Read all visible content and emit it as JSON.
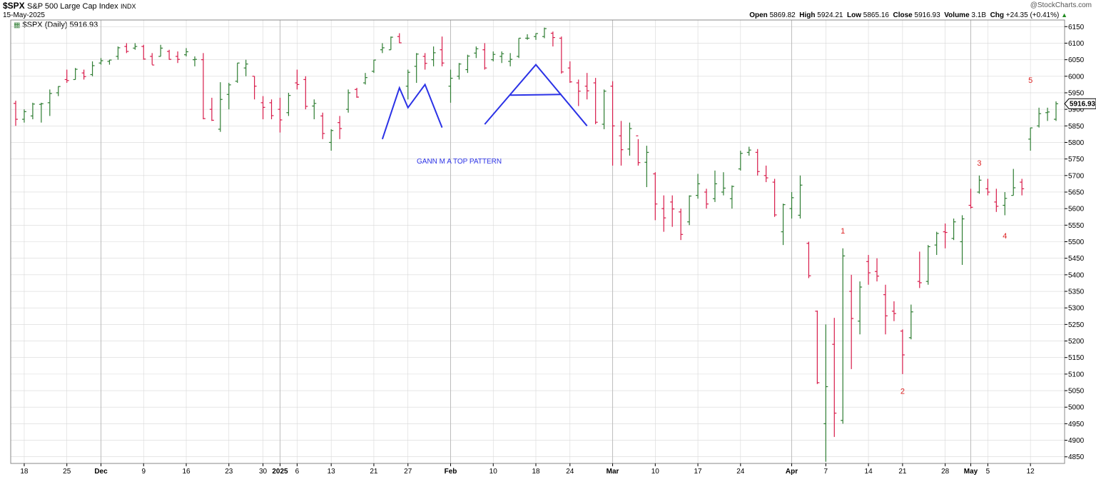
{
  "header": {
    "symbol": "$SPX",
    "name": "S&P 500 Large Cap Index",
    "exchange": "INDX",
    "date": "15-May-2025",
    "credit": "@StockCharts.com",
    "open_label": "Open",
    "open": "5869.82",
    "high_label": "High",
    "high": "5924.21",
    "low_label": "Low",
    "low": "5865.16",
    "close_label": "Close",
    "close": "5916.93",
    "volume_label": "Volume",
    "volume": "3.1B",
    "chg_label": "Chg",
    "chg": "+24.35 (+0.41%)"
  },
  "legend": {
    "icon": "bar-chart-icon",
    "text": "$SPX (Daily) 5916.93"
  },
  "price_tag": "5916.93",
  "colors": {
    "up": "#2e7d32",
    "down": "#d81b4a",
    "annotation": "#2b32e6",
    "wave_label": "#dd2222",
    "grid": "#d8d8d8"
  },
  "annotation_text": "GANN M  A  TOP PATTERN",
  "wave_labels": [
    {
      "text": "1",
      "date": "2025-04-09",
      "price": 5525
    },
    {
      "text": "2",
      "date": "2025-04-21",
      "price": 5040
    },
    {
      "text": "3",
      "date": "2025-05-02",
      "price": 5730
    },
    {
      "text": "4",
      "date": "2025-05-07",
      "price": 5510
    },
    {
      "text": "5",
      "date": "2025-05-12",
      "price": 5980
    }
  ],
  "chart_data": {
    "type": "ohlc",
    "ylim": [
      4830,
      6170
    ],
    "yticks": [
      4850,
      4900,
      4950,
      5000,
      5050,
      5100,
      5150,
      5200,
      5250,
      5300,
      5350,
      5400,
      5450,
      5500,
      5550,
      5600,
      5650,
      5700,
      5750,
      5800,
      5850,
      5900,
      5950,
      6000,
      6050,
      6100,
      6150
    ],
    "xticks": [
      {
        "label": "18",
        "date": "2024-11-18"
      },
      {
        "label": "25",
        "date": "2024-11-25"
      },
      {
        "label": "Dec",
        "date": "2024-12-02",
        "bold": true
      },
      {
        "label": "9",
        "date": "2024-12-09"
      },
      {
        "label": "16",
        "date": "2024-12-16"
      },
      {
        "label": "23",
        "date": "2024-12-23"
      },
      {
        "label": "30",
        "date": "2024-12-30"
      },
      {
        "label": "2025",
        "date": "2025-01-02",
        "bold": true
      },
      {
        "label": "6",
        "date": "2025-01-06"
      },
      {
        "label": "13",
        "date": "2025-01-13"
      },
      {
        "label": "21",
        "date": "2025-01-21"
      },
      {
        "label": "27",
        "date": "2025-01-27"
      },
      {
        "label": "Feb",
        "date": "2025-02-03",
        "bold": true
      },
      {
        "label": "10",
        "date": "2025-02-10"
      },
      {
        "label": "18",
        "date": "2025-02-18"
      },
      {
        "label": "24",
        "date": "2025-02-24"
      },
      {
        "label": "Mar",
        "date": "2025-03-03",
        "bold": true
      },
      {
        "label": "10",
        "date": "2025-03-10"
      },
      {
        "label": "17",
        "date": "2025-03-17"
      },
      {
        "label": "24",
        "date": "2025-03-24"
      },
      {
        "label": "Apr",
        "date": "2025-04-01",
        "bold": true
      },
      {
        "label": "7",
        "date": "2025-04-07"
      },
      {
        "label": "14",
        "date": "2025-04-14"
      },
      {
        "label": "21",
        "date": "2025-04-21"
      },
      {
        "label": "28",
        "date": "2025-04-28"
      },
      {
        "label": "May",
        "date": "2025-05-01",
        "bold": true
      },
      {
        "label": "5",
        "date": "2025-05-05"
      },
      {
        "label": "12",
        "date": "2025-05-12"
      }
    ],
    "m_pattern": [
      [
        "2025-01-22",
        5810
      ],
      [
        "2025-01-24",
        5965
      ],
      [
        "2025-01-27",
        5905
      ],
      [
        "2025-01-29",
        5975
      ],
      [
        "2025-01-31",
        5845
      ]
    ],
    "a_pattern": [
      [
        "2025-02-07",
        5855
      ],
      [
        "2025-02-18",
        6035
      ],
      [
        "2025-02-26",
        5850
      ]
    ],
    "a_crossbar": [
      [
        "2025-02-12",
        5943
      ],
      [
        "2025-02-21",
        5945
      ]
    ],
    "bars": [
      [
        "2024-11-15",
        5918,
        5926,
        5850,
        5870
      ],
      [
        "2024-11-18",
        5870,
        5900,
        5860,
        5893
      ],
      [
        "2024-11-19",
        5880,
        5920,
        5870,
        5916
      ],
      [
        "2024-11-20",
        5915,
        5920,
        5860,
        5917
      ],
      [
        "2024-11-21",
        5920,
        5960,
        5880,
        5948
      ],
      [
        "2024-11-22",
        5950,
        5970,
        5940,
        5969
      ],
      [
        "2024-11-25",
        5990,
        6020,
        5980,
        5987
      ],
      [
        "2024-11-26",
        5990,
        6025,
        5990,
        6021
      ],
      [
        "2024-11-27",
        6010,
        6020,
        5990,
        5999
      ],
      [
        "2024-11-29",
        6005,
        6045,
        6000,
        6032
      ],
      [
        "2024-12-02",
        6040,
        6055,
        6035,
        6047
      ],
      [
        "2024-12-03",
        6045,
        6050,
        6035,
        6049
      ],
      [
        "2024-12-04",
        6060,
        6090,
        6050,
        6086
      ],
      [
        "2024-12-05",
        6090,
        6100,
        6070,
        6075
      ],
      [
        "2024-12-06",
        6085,
        6100,
        6080,
        6090
      ],
      [
        "2024-12-09",
        6090,
        6095,
        6050,
        6052
      ],
      [
        "2024-12-10",
        6060,
        6070,
        6035,
        6034
      ],
      [
        "2024-12-11",
        6060,
        6095,
        6060,
        6085
      ],
      [
        "2024-12-12",
        6075,
        6080,
        6050,
        6051
      ],
      [
        "2024-12-13",
        6060,
        6075,
        6040,
        6051
      ],
      [
        "2024-12-16",
        6065,
        6085,
        6060,
        6074
      ],
      [
        "2024-12-17",
        6050,
        6060,
        6030,
        6051
      ],
      [
        "2024-12-18",
        6050,
        6070,
        5870,
        5872
      ],
      [
        "2024-12-19",
        5900,
        5935,
        5865,
        5867
      ],
      [
        "2024-12-20",
        5840,
        5982,
        5832,
        5930
      ],
      [
        "2024-12-23",
        5945,
        5980,
        5900,
        5974
      ],
      [
        "2024-12-24",
        5985,
        6040,
        5980,
        6040
      ],
      [
        "2024-12-26",
        6025,
        6050,
        6000,
        6037
      ],
      [
        "2024-12-27",
        6000,
        6000,
        5930,
        5970
      ],
      [
        "2024-12-30",
        5920,
        5940,
        5870,
        5906
      ],
      [
        "2024-12-31",
        5920,
        5930,
        5870,
        5881
      ],
      [
        "2025-01-02",
        5900,
        5935,
        5830,
        5868
      ],
      [
        "2025-01-03",
        5890,
        5950,
        5880,
        5942
      ],
      [
        "2025-01-06",
        5980,
        6020,
        5960,
        5975
      ],
      [
        "2025-01-07",
        5990,
        6000,
        5900,
        5909
      ],
      [
        "2025-01-08",
        5910,
        5930,
        5870,
        5918
      ],
      [
        "2025-01-10",
        5880,
        5890,
        5810,
        5827
      ],
      [
        "2025-01-13",
        5800,
        5840,
        5775,
        5836
      ],
      [
        "2025-01-14",
        5860,
        5880,
        5810,
        5842
      ],
      [
        "2025-01-15",
        5900,
        5960,
        5890,
        5950
      ],
      [
        "2025-01-16",
        5960,
        5965,
        5935,
        5937
      ],
      [
        "2025-01-17",
        5980,
        6010,
        5975,
        5996
      ],
      [
        "2025-01-21",
        6015,
        6050,
        6010,
        6049
      ],
      [
        "2025-01-22",
        6080,
        6100,
        6070,
        6086
      ],
      [
        "2025-01-23",
        6080,
        6120,
        6080,
        6118
      ],
      [
        "2025-01-24",
        6120,
        6130,
        6100,
        6101
      ],
      [
        "2025-01-27",
        5970,
        6020,
        5930,
        6012
      ],
      [
        "2025-01-28",
        6030,
        6070,
        5980,
        6067
      ],
      [
        "2025-01-29",
        6060,
        6070,
        6020,
        6039
      ],
      [
        "2025-01-30",
        6050,
        6090,
        6030,
        6071
      ],
      [
        "2025-01-31",
        6080,
        6120,
        6030,
        6040
      ],
      [
        "2025-02-03",
        5970,
        6020,
        5920,
        5994
      ],
      [
        "2025-02-04",
        6000,
        6040,
        5990,
        6037
      ],
      [
        "2025-02-05",
        6020,
        6065,
        6010,
        6061
      ],
      [
        "2025-02-06",
        6070,
        6090,
        6055,
        6083
      ],
      [
        "2025-02-07",
        6080,
        6100,
        6020,
        6025
      ],
      [
        "2025-02-10",
        6050,
        6075,
        6045,
        6066
      ],
      [
        "2025-02-11",
        6060,
        6075,
        6040,
        6068
      ],
      [
        "2025-02-12",
        6045,
        6070,
        6030,
        6051
      ],
      [
        "2025-02-13",
        6060,
        6115,
        6055,
        6115
      ],
      [
        "2025-02-14",
        6115,
        6127,
        6110,
        6115
      ],
      [
        "2025-02-18",
        6120,
        6130,
        6110,
        6129
      ],
      [
        "2025-02-19",
        6120,
        6147,
        6115,
        6144
      ],
      [
        "2025-02-20",
        6130,
        6135,
        6090,
        6117
      ],
      [
        "2025-02-21",
        6115,
        6120,
        6008,
        6013
      ],
      [
        "2025-02-24",
        6025,
        6045,
        5980,
        5983
      ],
      [
        "2025-02-25",
        5980,
        5990,
        5910,
        5955
      ],
      [
        "2025-02-26",
        5970,
        6010,
        5930,
        5956
      ],
      [
        "2025-02-27",
        5980,
        5995,
        5855,
        5861
      ],
      [
        "2025-02-28",
        5855,
        5960,
        5840,
        5955
      ],
      [
        "2025-03-03",
        5970,
        5985,
        5730,
        5850
      ],
      [
        "2025-03-04",
        5820,
        5865,
        5730,
        5778
      ],
      [
        "2025-03-05",
        5780,
        5860,
        5760,
        5842
      ],
      [
        "2025-03-06",
        5820,
        5810,
        5730,
        5739
      ],
      [
        "2025-03-07",
        5740,
        5790,
        5665,
        5770
      ],
      [
        "2025-03-10",
        5705,
        5710,
        5565,
        5614
      ],
      [
        "2025-03-11",
        5600,
        5640,
        5530,
        5572
      ],
      [
        "2025-03-12",
        5620,
        5640,
        5545,
        5599
      ],
      [
        "2025-03-13",
        5590,
        5600,
        5505,
        5522
      ],
      [
        "2025-03-14",
        5560,
        5640,
        5550,
        5638
      ],
      [
        "2025-03-17",
        5640,
        5705,
        5630,
        5675
      ],
      [
        "2025-03-18",
        5650,
        5660,
        5600,
        5614
      ],
      [
        "2025-03-19",
        5630,
        5715,
        5620,
        5675
      ],
      [
        "2025-03-20",
        5650,
        5710,
        5640,
        5662
      ],
      [
        "2025-03-21",
        5630,
        5670,
        5600,
        5667
      ],
      [
        "2025-03-24",
        5720,
        5775,
        5715,
        5767
      ],
      [
        "2025-03-25",
        5770,
        5787,
        5760,
        5777
      ],
      [
        "2025-03-26",
        5770,
        5780,
        5700,
        5712
      ],
      [
        "2025-03-27",
        5700,
        5730,
        5680,
        5693
      ],
      [
        "2025-03-28",
        5680,
        5690,
        5575,
        5581
      ],
      [
        "2025-03-31",
        5530,
        5615,
        5490,
        5612
      ],
      [
        "2025-04-01",
        5600,
        5650,
        5570,
        5633
      ],
      [
        "2025-04-02",
        5580,
        5700,
        5570,
        5671
      ],
      [
        "2025-04-03",
        5495,
        5500,
        5390,
        5397
      ],
      [
        "2025-04-04",
        5290,
        5292,
        5070,
        5074
      ],
      [
        "2025-04-07",
        4950,
        5250,
        4835,
        5062
      ],
      [
        "2025-04-08",
        5190,
        5270,
        4910,
        4982
      ],
      [
        "2025-04-09",
        4960,
        5480,
        4950,
        5457
      ],
      [
        "2025-04-10",
        5350,
        5400,
        5115,
        5268
      ],
      [
        "2025-04-11",
        5260,
        5380,
        5220,
        5363
      ],
      [
        "2025-04-14",
        5440,
        5460,
        5370,
        5406
      ],
      [
        "2025-04-15",
        5410,
        5450,
        5380,
        5396
      ],
      [
        "2025-04-16",
        5340,
        5370,
        5220,
        5276
      ],
      [
        "2025-04-17",
        5290,
        5320,
        5260,
        5283
      ],
      [
        "2025-04-21",
        5230,
        5235,
        5100,
        5158
      ],
      [
        "2025-04-22",
        5210,
        5310,
        5205,
        5288
      ],
      [
        "2025-04-23",
        5380,
        5470,
        5360,
        5376
      ],
      [
        "2025-04-24",
        5380,
        5490,
        5370,
        5485
      ],
      [
        "2025-04-25",
        5490,
        5530,
        5460,
        5525
      ],
      [
        "2025-04-28",
        5530,
        5555,
        5480,
        5528
      ],
      [
        "2025-04-29",
        5510,
        5570,
        5505,
        5560
      ],
      [
        "2025-04-30",
        5500,
        5580,
        5430,
        5569
      ],
      [
        "2025-05-01",
        5610,
        5660,
        5600,
        5604
      ],
      [
        "2025-05-02",
        5650,
        5700,
        5645,
        5686
      ],
      [
        "2025-05-05",
        5660,
        5690,
        5640,
        5650
      ],
      [
        "2025-05-06",
        5620,
        5660,
        5590,
        5607
      ],
      [
        "2025-05-07",
        5610,
        5650,
        5580,
        5631
      ],
      [
        "2025-05-08",
        5640,
        5720,
        5640,
        5663
      ],
      [
        "2025-05-09",
        5680,
        5690,
        5640,
        5660
      ],
      [
        "2025-05-12",
        5810,
        5845,
        5775,
        5844
      ],
      [
        "2025-05-13",
        5850,
        5905,
        5845,
        5887
      ],
      [
        "2025-05-14",
        5890,
        5905,
        5865,
        5892
      ],
      [
        "2025-05-15",
        5870,
        5924,
        5865,
        5917
      ]
    ]
  }
}
